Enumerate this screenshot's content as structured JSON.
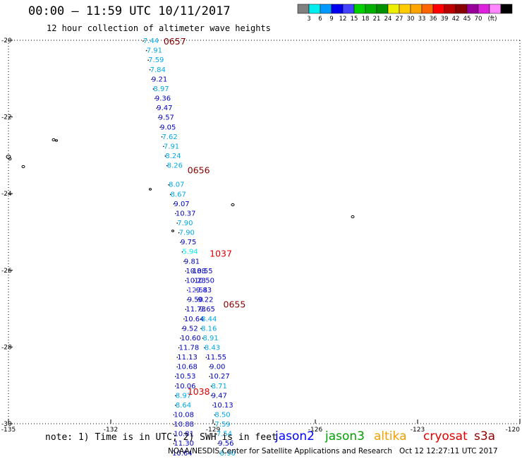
{
  "title": "00:00 – 11:59 UTC 10/11/2017",
  "subtitle": "12 hour collection of altimeter wave heights",
  "note": "note: 1) Time is in UTC; 2) SWH is in feet",
  "credit": "NOAA/NESDIS Center for Satellite Applications and Research",
  "timestamp": "Oct 12 12:27:11 UTC 2017",
  "satellites": [
    {
      "name": "jason2",
      "color": "#0000ff"
    },
    {
      "name": "jason3",
      "color": "#00a000"
    },
    {
      "name": "altika",
      "color": "#f0a000"
    },
    {
      "name": "cryosat",
      "color": "#e00000"
    },
    {
      "name": "s3a",
      "color": "#900000"
    }
  ],
  "color_scale": {
    "unit": "(ft)",
    "colors": [
      "#808080",
      "#00eeee",
      "#0099ff",
      "#0000ee",
      "#4444ff",
      "#00d000",
      "#00b000",
      "#009000",
      "#eeee00",
      "#ffcc00",
      "#ffa500",
      "#ff6600",
      "#ff0000",
      "#bb0000",
      "#880000",
      "#990099",
      "#dd22dd",
      "#ff88ff",
      "#000000"
    ],
    "labels": [
      "3",
      "6",
      "9",
      "12",
      "15",
      "18",
      "21",
      "24",
      "27",
      "30",
      "33",
      "36",
      "39",
      "42",
      "45",
      "70"
    ]
  },
  "axes": {
    "lon_ticks": [
      "-135",
      "-132",
      "-129",
      "-126",
      "-123",
      "-120"
    ],
    "lat_ticks": [
      "-20",
      "-22",
      "-24",
      "-26",
      "-28",
      "-30"
    ]
  },
  "pass_labels": [
    {
      "text": "0657",
      "lat": -20.02,
      "lon": -130.45,
      "color": "#880000"
    },
    {
      "text": "0656",
      "lat": -23.38,
      "lon": -129.75,
      "color": "#880000"
    },
    {
      "text": "1037",
      "lat": -25.55,
      "lon": -129.1,
      "color": "#e00000"
    },
    {
      "text": "0655",
      "lat": -26.88,
      "lon": -128.7,
      "color": "#880000"
    },
    {
      "text": "1038",
      "lat": -29.15,
      "lon": -129.75,
      "color": "#e00000"
    }
  ],
  "chart_data": {
    "type": "scatter",
    "xlabel": "",
    "ylabel": "",
    "xlim": [
      -135,
      -120
    ],
    "ylim": [
      -30,
      -20
    ],
    "tracks": [
      {
        "name": "jason3",
        "points": [
          {
            "lat": -20.02,
            "lon": -131.05,
            "swh": "7.44"
          },
          {
            "lat": -20.27,
            "lon": -130.95,
            "swh": "7.91"
          },
          {
            "lat": -20.52,
            "lon": -130.9,
            "swh": "7.59"
          },
          {
            "lat": -20.77,
            "lon": -130.85,
            "swh": "7.84"
          },
          {
            "lat": -21.02,
            "lon": -130.8,
            "swh": "9.21"
          },
          {
            "lat": -21.27,
            "lon": -130.75,
            "swh": "8.97"
          },
          {
            "lat": -21.52,
            "lon": -130.7,
            "swh": "9.36"
          },
          {
            "lat": -21.77,
            "lon": -130.65,
            "swh": "9.47"
          },
          {
            "lat": -22.02,
            "lon": -130.6,
            "swh": "9.57"
          },
          {
            "lat": -22.27,
            "lon": -130.55,
            "swh": "9.05"
          },
          {
            "lat": -22.52,
            "lon": -130.5,
            "swh": "7.62"
          },
          {
            "lat": -22.77,
            "lon": -130.45,
            "swh": "7.91"
          },
          {
            "lat": -23.02,
            "lon": -130.4,
            "swh": "8.24"
          },
          {
            "lat": -23.27,
            "lon": -130.35,
            "swh": "8.26"
          },
          {
            "lat": -23.77,
            "lon": -130.3,
            "swh": "8.07"
          },
          {
            "lat": -24.02,
            "lon": -130.25,
            "swh": "8.67"
          },
          {
            "lat": -24.27,
            "lon": -130.15,
            "swh": "9.07"
          },
          {
            "lat": -24.52,
            "lon": -130.1,
            "swh": "10.37"
          },
          {
            "lat": -24.77,
            "lon": -130.05,
            "swh": "7.90"
          },
          {
            "lat": -25.02,
            "lon": -130.0,
            "swh": "7.90"
          },
          {
            "lat": -25.27,
            "lon": -129.95,
            "swh": "9.75"
          },
          {
            "lat": -25.52,
            "lon": -129.9,
            "swh": "5.94"
          },
          {
            "lat": -25.77,
            "lon": -129.85,
            "swh": "9.81"
          },
          {
            "lat": -26.02,
            "lon": -129.8,
            "swh": "10.88"
          },
          {
            "lat": -26.27,
            "lon": -129.8,
            "swh": "10.23"
          },
          {
            "lat": -26.52,
            "lon": -129.75,
            "swh": "12.54"
          },
          {
            "lat": -26.77,
            "lon": -129.75,
            "swh": "9.50"
          },
          {
            "lat": -27.02,
            "lon": -129.8,
            "swh": "11.73"
          },
          {
            "lat": -27.27,
            "lon": -129.85,
            "swh": "10.64"
          },
          {
            "lat": -27.52,
            "lon": -129.9,
            "swh": "9.52"
          },
          {
            "lat": -27.77,
            "lon": -129.95,
            "swh": "10.60"
          },
          {
            "lat": -28.02,
            "lon": -130.0,
            "swh": "11.78"
          },
          {
            "lat": -28.27,
            "lon": -130.05,
            "swh": "11.13"
          },
          {
            "lat": -28.52,
            "lon": -130.05,
            "swh": "10.68"
          },
          {
            "lat": -28.77,
            "lon": -130.1,
            "swh": "10.53"
          },
          {
            "lat": -29.02,
            "lon": -130.1,
            "swh": "10.06"
          },
          {
            "lat": -29.27,
            "lon": -130.1,
            "swh": "8.97"
          },
          {
            "lat": -29.52,
            "lon": -130.1,
            "swh": "8.64"
          },
          {
            "lat": -29.77,
            "lon": -130.15,
            "swh": "10.08"
          },
          {
            "lat": -30.02,
            "lon": -130.15,
            "swh": "10.88"
          },
          {
            "lat": -30.27,
            "lon": -130.15,
            "swh": "10.81"
          },
          {
            "lat": -30.52,
            "lon": -130.15,
            "swh": "11.30"
          },
          {
            "lat": -30.77,
            "lon": -130.2,
            "swh": "10.64"
          }
        ]
      },
      {
        "name": "cryosat",
        "points": [
          {
            "lat": -26.02,
            "lon": -129.6,
            "swh": "10.55"
          },
          {
            "lat": -26.27,
            "lon": -129.55,
            "swh": "10.50"
          },
          {
            "lat": -26.52,
            "lon": -129.5,
            "swh": "9.83"
          },
          {
            "lat": -26.77,
            "lon": -129.45,
            "swh": "9.22"
          },
          {
            "lat": -27.02,
            "lon": -129.4,
            "swh": "9.65"
          },
          {
            "lat": -27.27,
            "lon": -129.35,
            "swh": "8.44"
          },
          {
            "lat": -27.52,
            "lon": -129.35,
            "swh": "8.16"
          },
          {
            "lat": -27.77,
            "lon": -129.3,
            "swh": "8.91"
          },
          {
            "lat": -28.02,
            "lon": -129.25,
            "swh": "8.43"
          },
          {
            "lat": -28.27,
            "lon": -129.2,
            "swh": "11.55"
          },
          {
            "lat": -28.52,
            "lon": -129.1,
            "swh": "9.00"
          },
          {
            "lat": -28.77,
            "lon": -129.1,
            "swh": "10.27"
          },
          {
            "lat": -29.02,
            "lon": -129.05,
            "swh": "8.71"
          },
          {
            "lat": -29.27,
            "lon": -129.05,
            "swh": "9.47"
          },
          {
            "lat": -29.52,
            "lon": -129.0,
            "swh": "10.13"
          },
          {
            "lat": -29.77,
            "lon": -128.95,
            "swh": "8.50"
          },
          {
            "lat": -30.02,
            "lon": -128.95,
            "swh": "7.59"
          },
          {
            "lat": -30.27,
            "lon": -128.9,
            "swh": "7.54"
          },
          {
            "lat": -30.52,
            "lon": -128.85,
            "swh": "9.56"
          },
          {
            "lat": -30.77,
            "lon": -128.8,
            "swh": "8.90"
          }
        ]
      }
    ]
  }
}
